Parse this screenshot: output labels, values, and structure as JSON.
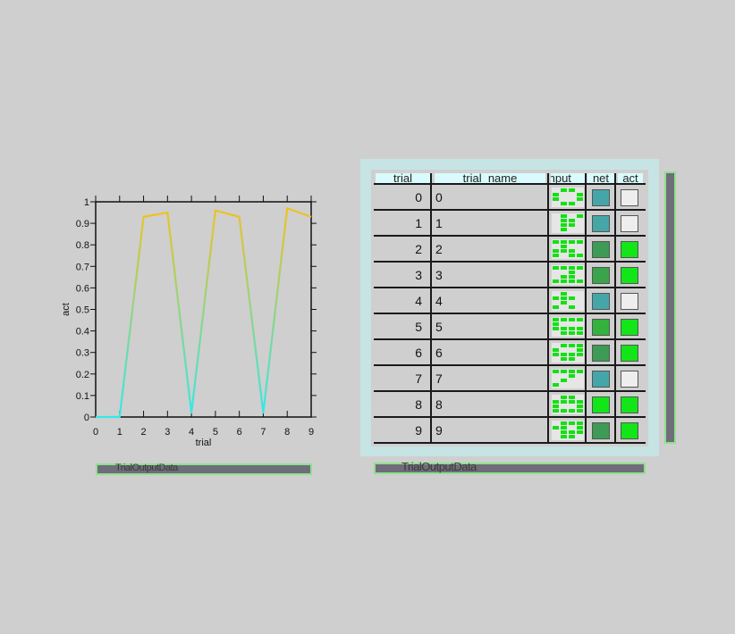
{
  "chart_data": {
    "type": "line",
    "xlabel": "trial",
    "ylabel": "act",
    "xlim": [
      0,
      9
    ],
    "ylim": [
      0,
      1
    ],
    "x_ticks": [
      "0",
      "1",
      "2",
      "3",
      "4",
      "5",
      "6",
      "7",
      "8",
      "9"
    ],
    "y_ticks": [
      "0",
      "0.1",
      "0.2",
      "0.3",
      "0.4",
      "0.5",
      "0.6",
      "0.7",
      "0.8",
      "0.9",
      "1"
    ],
    "series": [
      {
        "x": [
          0,
          1,
          2,
          3,
          4,
          5,
          6,
          7,
          8,
          9
        ],
        "values": [
          0.0,
          0.0,
          0.93,
          0.95,
          0.02,
          0.96,
          0.93,
          0.02,
          0.97,
          0.93
        ]
      }
    ],
    "color_low": "#33e8e8",
    "color_high": "#f5c01a"
  },
  "plot_caption": "TrialOutputData",
  "grid": {
    "caption": "TrialOutputData",
    "headers": {
      "trial": "trial",
      "trial_name": "trial_name",
      "input": "Input",
      "net": "net",
      "act": "act"
    },
    "rows": [
      {
        "trial": "0",
        "name": "0",
        "net": "#45a6a8",
        "act": "#eeeeee"
      },
      {
        "trial": "1",
        "name": "1",
        "net": "#45a6a8",
        "act": "#eeeeee"
      },
      {
        "trial": "2",
        "name": "2",
        "net": "#3d9b55",
        "act": "#12e618"
      },
      {
        "trial": "3",
        "name": "3",
        "net": "#3aa44a",
        "act": "#12e618"
      },
      {
        "trial": "4",
        "name": "4",
        "net": "#45a6a8",
        "act": "#eeeeee"
      },
      {
        "trial": "5",
        "name": "5",
        "net": "#33b23c",
        "act": "#12e618"
      },
      {
        "trial": "6",
        "name": "6",
        "net": "#3d9b55",
        "act": "#12e618"
      },
      {
        "trial": "7",
        "name": "7",
        "net": "#45a6a8",
        "act": "#eeeeee"
      },
      {
        "trial": "8",
        "name": "8",
        "net": "#12e618",
        "act": "#12e618"
      },
      {
        "trial": "9",
        "name": "9",
        "net": "#3d9b55",
        "act": "#12e618"
      }
    ]
  }
}
